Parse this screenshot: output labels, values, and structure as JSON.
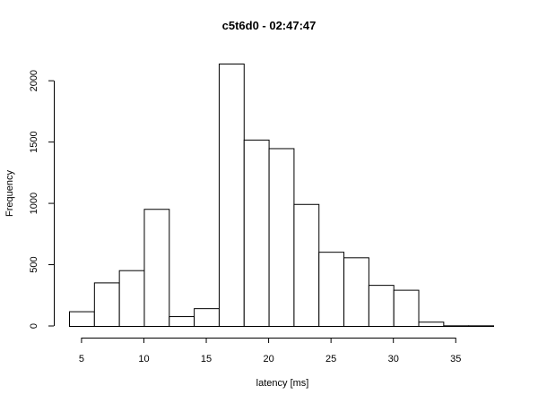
{
  "chart_data": {
    "type": "bar",
    "title": "c5t6d0 - 02:47:47",
    "xlabel": "latency [ms]",
    "ylabel": "Frequency",
    "bin_edges": [
      4,
      6,
      8,
      10,
      12,
      14,
      16,
      18,
      20,
      22,
      24,
      26,
      28,
      30,
      32,
      34,
      36,
      38
    ],
    "values": [
      120,
      355,
      455,
      955,
      80,
      145,
      2140,
      1520,
      1450,
      995,
      605,
      560,
      335,
      295,
      35,
      5,
      5
    ],
    "xlim": [
      4,
      38
    ],
    "ylim": [
      0,
      2140
    ],
    "x_ticks": [
      5,
      10,
      15,
      20,
      25,
      30,
      35
    ],
    "y_ticks": [
      0,
      500,
      1000,
      1500,
      2000
    ],
    "grid": false,
    "legend": "none"
  }
}
